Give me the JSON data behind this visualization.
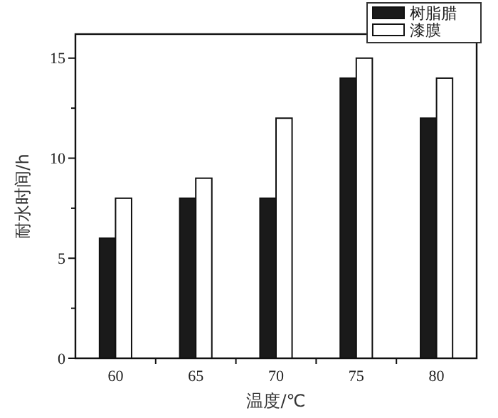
{
  "chart_data": {
    "type": "bar",
    "xlabel": "温度/℃",
    "ylabel": "耐水时间/h",
    "categories": [
      "60",
      "65",
      "70",
      "75",
      "80"
    ],
    "series": [
      {
        "name": "树脂腊",
        "color": "#1a1a1a",
        "values": [
          6,
          8,
          8,
          14,
          12
        ]
      },
      {
        "name": "漆膜",
        "color": "#ffffff",
        "values": [
          8,
          9,
          12,
          15,
          14
        ]
      }
    ],
    "ylim": [
      0,
      16.2
    ],
    "yticks": [
      0,
      {
        "value": 2.5,
        "label": null
      },
      5,
      {
        "value": 7.5,
        "label": null
      },
      10,
      {
        "value": 12.5,
        "label": null
      },
      15
    ],
    "legend": "top right",
    "grid": false
  }
}
